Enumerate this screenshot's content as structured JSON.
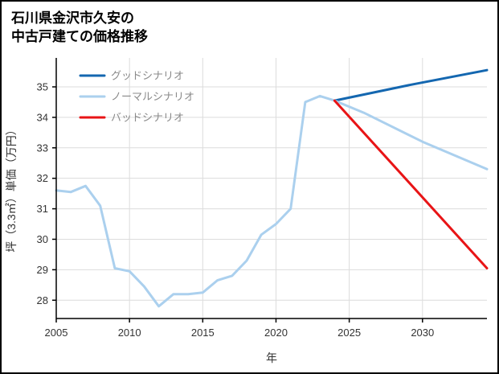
{
  "header": {
    "title_lines": [
      "石川県金沢市久安の",
      "中古戸建ての価格推移"
    ]
  },
  "chart_data": {
    "type": "line",
    "title": "石川県金沢市久安の中古戸建ての価格推移",
    "xlabel": "年",
    "ylabel": "坪（3.3㎡）単価（万円）",
    "xlim": [
      2005,
      2034.4
    ],
    "ylim": [
      27.4,
      35.95
    ],
    "xticks": [
      2005,
      2010,
      2015,
      2020,
      2025,
      2030
    ],
    "yticks": [
      28,
      29,
      30,
      31,
      32,
      33,
      34,
      35
    ],
    "grid": true,
    "legend_position": "top-left",
    "colors": {
      "grid": "#dcdcdc",
      "axis": "#000000",
      "tick_label": "#333333",
      "legend_text": "#8a8a8a",
      "background": "#ffffff"
    },
    "series": [
      {
        "id": "good",
        "name": "グッドシナリオ",
        "color": "#1467b0",
        "width": 3,
        "points": [
          [
            2024,
            34.55
          ],
          [
            2029,
            35.05
          ],
          [
            2034.4,
            35.55
          ]
        ]
      },
      {
        "id": "normal",
        "name": "ノーマルシナリオ",
        "color": "#abd0ee",
        "width": 3,
        "points": [
          [
            2005,
            31.6
          ],
          [
            2006,
            31.55
          ],
          [
            2007,
            31.75
          ],
          [
            2008,
            31.1
          ],
          [
            2009,
            29.05
          ],
          [
            2010,
            28.95
          ],
          [
            2011,
            28.45
          ],
          [
            2012,
            27.8
          ],
          [
            2013,
            28.2
          ],
          [
            2014,
            28.2
          ],
          [
            2015,
            28.25
          ],
          [
            2016,
            28.65
          ],
          [
            2017,
            28.8
          ],
          [
            2018,
            29.3
          ],
          [
            2019,
            30.15
          ],
          [
            2020,
            30.5
          ],
          [
            2021,
            31.0
          ],
          [
            2022,
            34.5
          ],
          [
            2023,
            34.7
          ],
          [
            2024,
            34.55
          ],
          [
            2026,
            34.15
          ],
          [
            2030,
            33.2
          ],
          [
            2034.4,
            32.3
          ]
        ]
      },
      {
        "id": "bad",
        "name": "バッドシナリオ",
        "color": "#e81416",
        "width": 3,
        "points": [
          [
            2024,
            34.55
          ],
          [
            2034.4,
            29.05
          ]
        ]
      }
    ]
  }
}
